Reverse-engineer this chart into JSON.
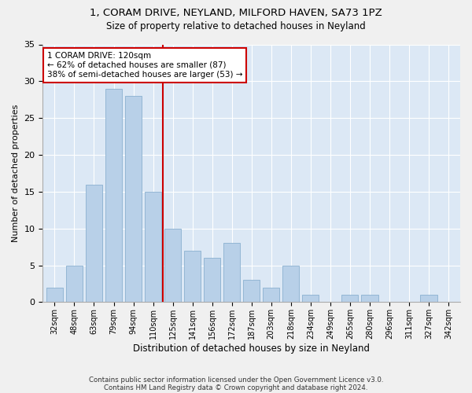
{
  "title1": "1, CORAM DRIVE, NEYLAND, MILFORD HAVEN, SA73 1PZ",
  "title2": "Size of property relative to detached houses in Neyland",
  "xlabel": "Distribution of detached houses by size in Neyland",
  "ylabel": "Number of detached properties",
  "categories": [
    "32sqm",
    "48sqm",
    "63sqm",
    "79sqm",
    "94sqm",
    "110sqm",
    "125sqm",
    "141sqm",
    "156sqm",
    "172sqm",
    "187sqm",
    "203sqm",
    "218sqm",
    "234sqm",
    "249sqm",
    "265sqm",
    "280sqm",
    "296sqm",
    "311sqm",
    "327sqm",
    "342sqm"
  ],
  "values": [
    2,
    5,
    16,
    29,
    28,
    15,
    10,
    7,
    6,
    8,
    3,
    2,
    5,
    1,
    0,
    1,
    1,
    0,
    0,
    1,
    0
  ],
  "bar_color": "#b8d0e8",
  "bar_edge_color": "#8ab0d0",
  "vline_x": 5.5,
  "vline_color": "#cc0000",
  "annotation_text": "1 CORAM DRIVE: 120sqm\n← 62% of detached houses are smaller (87)\n38% of semi-detached houses are larger (53) →",
  "annotation_box_color": "#ffffff",
  "annotation_box_edge": "#cc0000",
  "ylim": [
    0,
    35
  ],
  "yticks": [
    0,
    5,
    10,
    15,
    20,
    25,
    30,
    35
  ],
  "background_color": "#dce8f5",
  "fig_background": "#f0f0f0",
  "footer1": "Contains HM Land Registry data © Crown copyright and database right 2024.",
  "footer2": "Contains public sector information licensed under the Open Government Licence v3.0."
}
